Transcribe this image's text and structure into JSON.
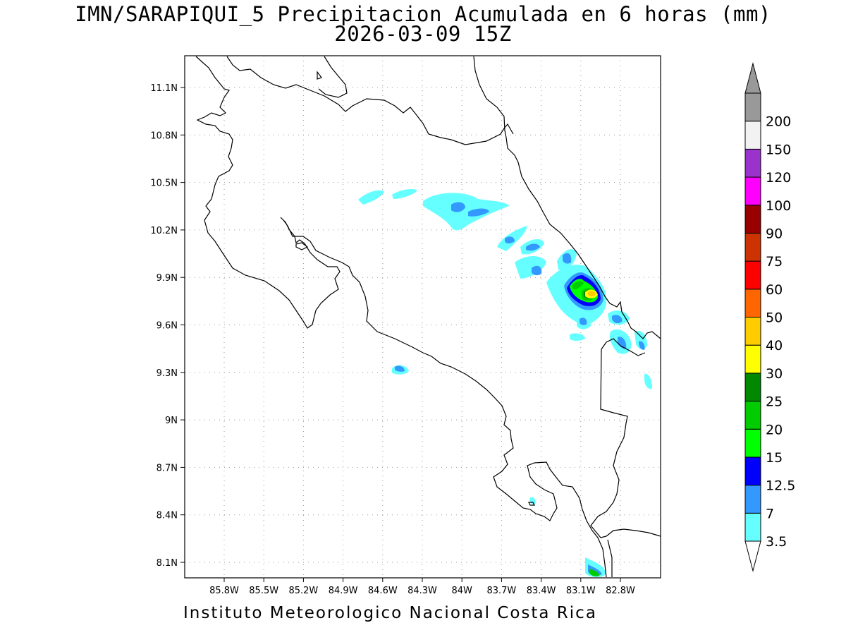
{
  "title_line1": "IMN/SARAPIQUI_5 Precipitacion Acumulada en 6 horas (mm)",
  "title_line2": "2026-03-09 15Z",
  "credit": "Instituto Meteorologico Nacional Costa Rica",
  "map": {
    "lon_range": [
      -86.0,
      -83.05
    ],
    "lat_range": [
      8.0,
      11.25
    ],
    "lon_ticks": [
      {
        "value": -85.8,
        "label": "85.8W"
      },
      {
        "value": -85.5,
        "label": "85.5W"
      },
      {
        "value": -85.2,
        "label": "85.2W"
      },
      {
        "value": -84.9,
        "label": "84.9W"
      },
      {
        "value": -84.6,
        "label": "84.6W"
      },
      {
        "value": -84.3,
        "label": "84.3W"
      },
      {
        "value": -84.0,
        "label": "84W"
      },
      {
        "value": -83.7,
        "label": "83.7W"
      },
      {
        "value": -83.4,
        "label": "83.4W"
      },
      {
        "value": -83.1,
        "label": "83.1W"
      },
      {
        "value": -82.8,
        "label": "82.8W"
      }
    ],
    "lat_ticks": [
      {
        "value": 8.1,
        "label": "8.1N"
      },
      {
        "value": 8.4,
        "label": "8.4N"
      },
      {
        "value": 8.7,
        "label": "8.7N"
      },
      {
        "value": 9.0,
        "label": "9N"
      },
      {
        "value": 9.3,
        "label": "9.3N"
      },
      {
        "value": 9.6,
        "label": "9.6N"
      },
      {
        "value": 9.9,
        "label": "9.9N"
      },
      {
        "value": 10.2,
        "label": "10.2N"
      },
      {
        "value": 10.5,
        "label": "10.5N"
      },
      {
        "value": 10.8,
        "label": "10.8N"
      },
      {
        "value": 11.1,
        "label": "11.1N"
      }
    ],
    "grid": "dotted",
    "coastline_color": "#000000"
  },
  "legend": {
    "levels": [
      {
        "label": "3.5",
        "color": "#66ffff"
      },
      {
        "label": "7",
        "color": "#3399ff"
      },
      {
        "label": "12.5",
        "color": "#0000ff"
      },
      {
        "label": "15",
        "color": "#00ff00"
      },
      {
        "label": "20",
        "color": "#00cc00"
      },
      {
        "label": "25",
        "color": "#008800"
      },
      {
        "label": "30",
        "color": "#ffff00"
      },
      {
        "label": "40",
        "color": "#ffcc00"
      },
      {
        "label": "50",
        "color": "#ff6600"
      },
      {
        "label": "60",
        "color": "#ff0000"
      },
      {
        "label": "75",
        "color": "#cc3300"
      },
      {
        "label": "90",
        "color": "#990000"
      },
      {
        "label": "100",
        "color": "#ff00ff"
      },
      {
        "label": "120",
        "color": "#9933cc"
      },
      {
        "label": "150",
        "color": "#f2f2f2"
      },
      {
        "label": "200",
        "color": "#999999"
      }
    ],
    "top_arrow_color": "#999999",
    "bottom_arrow_color": "#ffffff"
  }
}
